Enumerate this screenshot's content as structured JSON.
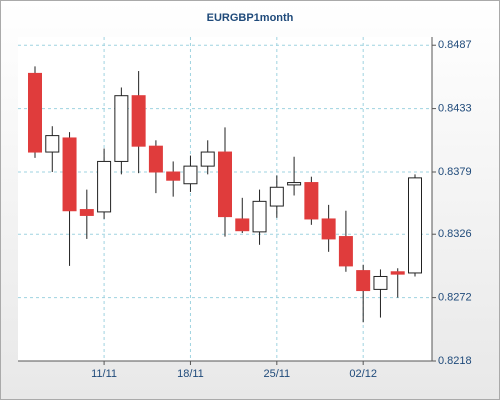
{
  "chart_data": {
    "type": "candlestick",
    "title": "EURGBP1month",
    "categories": [
      null,
      null,
      null,
      null,
      "11/11",
      null,
      null,
      null,
      null,
      "18/11",
      null,
      null,
      null,
      null,
      "25/11",
      null,
      null,
      null,
      null,
      "02/12",
      null,
      null,
      null
    ],
    "series": [
      {
        "open": [
          0.8463,
          0.8396,
          0.8408,
          0.8347,
          0.8345,
          0.8388,
          0.8444,
          0.8401,
          0.8379,
          0.8369,
          0.8384,
          0.8396,
          0.8339,
          0.8328,
          0.835,
          0.8368,
          0.837,
          0.8339,
          0.8324,
          0.8295,
          0.8279,
          0.8294,
          0.8293
        ],
        "high": [
          0.8469,
          0.8418,
          0.8413,
          0.8364,
          0.8399,
          0.8451,
          0.8465,
          0.8406,
          0.8388,
          0.8393,
          0.8406,
          0.8417,
          0.8357,
          0.8364,
          0.8376,
          0.8392,
          0.8375,
          0.8351,
          0.8346,
          0.83,
          0.8296,
          0.8297,
          0.8377
        ],
        "low": [
          0.8391,
          0.8379,
          0.8299,
          0.8322,
          0.8339,
          0.8377,
          0.8378,
          0.8361,
          0.8358,
          0.8362,
          0.8377,
          0.8324,
          0.8327,
          0.8317,
          0.834,
          0.8359,
          0.8334,
          0.8311,
          0.8294,
          0.8251,
          0.8255,
          0.8272,
          0.829
        ],
        "close": [
          0.8396,
          0.841,
          0.8346,
          0.8342,
          0.8388,
          0.8444,
          0.8401,
          0.8379,
          0.8372,
          0.8384,
          0.8396,
          0.8341,
          0.8329,
          0.8354,
          0.8366,
          0.837,
          0.8339,
          0.8322,
          0.8299,
          0.8278,
          0.829,
          0.8292,
          0.8374
        ],
        "up_color": "#ffffff",
        "down_color": "#e03c3c"
      }
    ],
    "ylim": [
      0.8218,
      0.8494
    ],
    "yticks": [
      0.8218,
      0.8272,
      0.8326,
      0.8379,
      0.8433,
      0.8487
    ],
    "grid": true
  }
}
